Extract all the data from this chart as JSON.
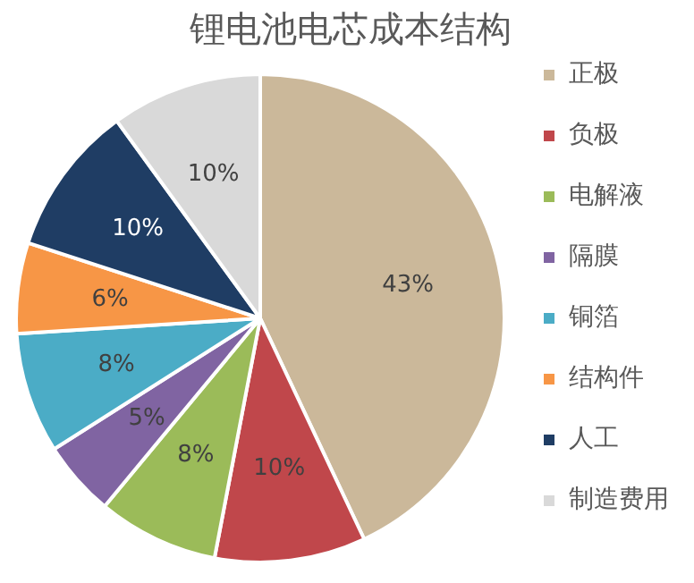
{
  "chart_data": {
    "type": "pie",
    "title": "锂电池电芯成本结构",
    "categories": [
      "正极",
      "负极",
      "电解液",
      "隔膜",
      "铜箔",
      "结构件",
      "人工",
      "制造费用"
    ],
    "values": [
      43,
      10,
      8,
      5,
      8,
      6,
      10,
      10
    ],
    "colors": [
      "#cbb89a",
      "#c0474b",
      "#9bbb59",
      "#8064a2",
      "#4bacc6",
      "#f79646",
      "#1f3d64",
      "#d9d9d9"
    ],
    "value_labels": [
      "43%",
      "10%",
      "8%",
      "5%",
      "8%",
      "6%",
      "10%",
      "10%"
    ],
    "legend": "right"
  }
}
